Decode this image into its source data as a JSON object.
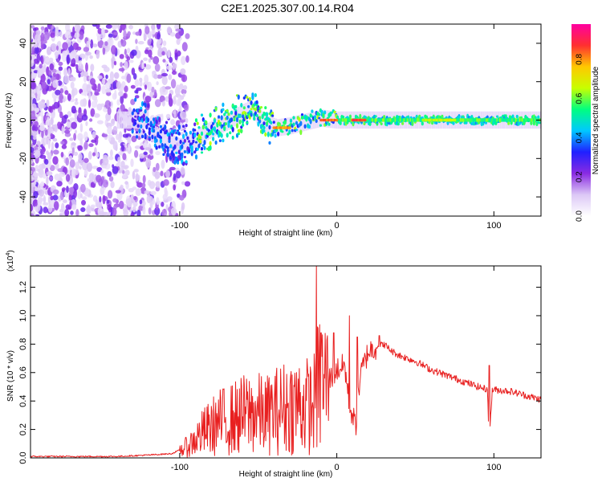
{
  "title": "C2E1.2025.307.00.14.R04",
  "chart_data": [
    {
      "type": "heatmap",
      "xlabel": "Height of straight line (km)",
      "ylabel": "Frequency (Hz)",
      "xlim": [
        -195,
        130
      ],
      "ylim": [
        -50,
        50
      ],
      "xticks": [
        "-100",
        "0",
        "100"
      ],
      "xtick_values": [
        -100,
        0,
        100
      ],
      "yticks": [
        "40",
        "20",
        "0",
        "-20",
        "-40"
      ],
      "ytick_values": [
        40,
        20,
        0,
        -20,
        -40
      ],
      "colorbar": {
        "label": "Normalized spectral amplitude",
        "ticks": [
          "0.0",
          "0.2",
          "0.4",
          "0.6",
          "0.8"
        ],
        "tick_values": [
          0.0,
          0.2,
          0.4,
          0.6,
          0.8
        ],
        "range": [
          0,
          0.98
        ],
        "colormap": [
          "#ffffff",
          "#dcc8f6",
          "#8a2be2",
          "#2020ff",
          "#00c8ff",
          "#00ff80",
          "#c8ff00",
          "#ffc800",
          "#ff3030",
          "#ff00a0"
        ]
      },
      "ridge": [
        {
          "x": -120,
          "f": -6
        },
        {
          "x": -110,
          "f": -10
        },
        {
          "x": -100,
          "f": -14
        },
        {
          "x": -92,
          "f": -11
        },
        {
          "x": -85,
          "f": -7
        },
        {
          "x": -78,
          "f": -4
        },
        {
          "x": -70,
          "f": -1
        },
        {
          "x": -62,
          "f": 3
        },
        {
          "x": -55,
          "f": 6
        },
        {
          "x": -50,
          "f": 2
        },
        {
          "x": -45,
          "f": -2
        },
        {
          "x": -38,
          "f": -4
        },
        {
          "x": -30,
          "f": -3
        },
        {
          "x": -20,
          "f": -1
        },
        {
          "x": -10,
          "f": 1
        },
        {
          "x": 0,
          "f": 0
        },
        {
          "x": 10,
          "f": 0
        },
        {
          "x": 20,
          "f": 0
        },
        {
          "x": 60,
          "f": 0
        },
        {
          "x": 100,
          "f": 0
        },
        {
          "x": 130,
          "f": 0
        }
      ],
      "peak_amplitude_segments": [
        {
          "x": [
            -40,
            -30
          ],
          "f": -4,
          "amplitude": 0.85
        },
        {
          "x": [
            -10,
            0
          ],
          "f": 0,
          "amplitude": 0.9
        },
        {
          "x": [
            10,
            18
          ],
          "f": 0,
          "amplitude": 0.95
        },
        {
          "x": [
            55,
            75
          ],
          "f": 0,
          "amplitude": 0.72
        }
      ]
    },
    {
      "type": "line",
      "xlabel": "Height of straight line (km)",
      "ylabel": "SNR (10 * v/v)",
      "y_multiplier": "(x10",
      "y_multiplier_exponent": "4",
      "y_multiplier_close": ")",
      "xlim": [
        -195,
        130
      ],
      "ylim": [
        0,
        1.35
      ],
      "xticks": [
        "-100",
        "0",
        "100"
      ],
      "xtick_values": [
        -100,
        0,
        100
      ],
      "yticks": [
        "0.0",
        "0.2",
        "0.4",
        "0.6",
        "0.8",
        "1.0",
        "1.2"
      ],
      "ytick_values": [
        0.0,
        0.2,
        0.4,
        0.6,
        0.8,
        1.0,
        1.2
      ],
      "series": [
        {
          "name": "SNR",
          "color": "#e82020",
          "x": [
            -195,
            -180,
            -160,
            -140,
            -120,
            -105,
            -95,
            -85,
            -75,
            -65,
            -55,
            -45,
            -35,
            -25,
            -15,
            -12,
            -5,
            0,
            5,
            8,
            12,
            15,
            20,
            25,
            30,
            35,
            40,
            50,
            60,
            70,
            80,
            90,
            96,
            97,
            99,
            110,
            120,
            130
          ],
          "values": [
            0.01,
            0.01,
            0.01,
            0.01,
            0.02,
            0.03,
            0.08,
            0.18,
            0.25,
            0.28,
            0.32,
            0.3,
            0.35,
            0.38,
            0.36,
            0.5,
            0.55,
            0.62,
            0.65,
            0.38,
            0.22,
            0.58,
            0.75,
            0.78,
            0.8,
            0.75,
            0.72,
            0.68,
            0.62,
            0.58,
            0.54,
            0.5,
            0.48,
            0.12,
            0.48,
            0.47,
            0.44,
            0.41
          ],
          "spikes": [
            {
              "x": -13,
              "value": 1.35
            },
            {
              "x": -10,
              "value": 0.88
            },
            {
              "x": -2,
              "value": 0.88
            },
            {
              "x": 8,
              "value": 1.0
            },
            {
              "x": 13,
              "value": 0.85
            },
            {
              "x": 27,
              "value": 0.86
            },
            {
              "x": 97,
              "value": 0.65
            }
          ]
        }
      ]
    }
  ]
}
